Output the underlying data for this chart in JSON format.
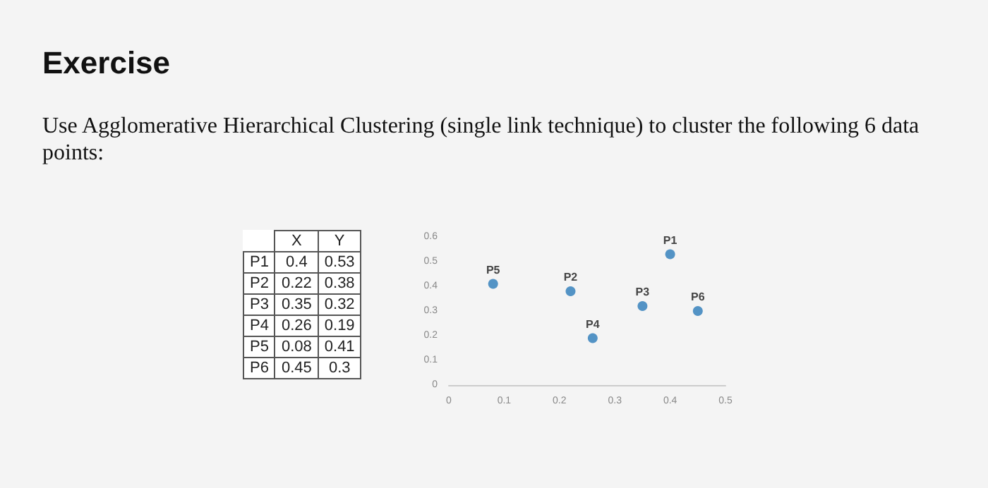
{
  "chart_data": {
    "type": "scatter",
    "title": "Exercise",
    "subtitle": "Use Agglomerative Hierarchical Clustering (single link technique) to cluster the following 6 data points:",
    "x": [
      0.4,
      0.22,
      0.35,
      0.26,
      0.08,
      0.45
    ],
    "values": [
      0.53,
      0.38,
      0.32,
      0.19,
      0.41,
      0.3
    ],
    "color": "#2b7bb9",
    "marker": "circle",
    "grid": false,
    "xlim": [
      0,
      0.5
    ],
    "xticks": [
      0,
      0.1,
      0.2,
      0.3,
      0.4,
      0.5
    ],
    "ylim": [
      0,
      0.6
    ],
    "yticks": [
      0,
      0.1,
      0.2,
      0.3,
      0.4,
      0.5,
      0.6
    ],
    "annotations": [
      {
        "text": "P1",
        "x": 0.4,
        "y": 0.53
      },
      {
        "text": "P2",
        "x": 0.22,
        "y": 0.38
      },
      {
        "text": "P3",
        "x": 0.35,
        "y": 0.32
      },
      {
        "text": "P4",
        "x": 0.26,
        "y": 0.19
      },
      {
        "text": "P5",
        "x": 0.08,
        "y": 0.41
      },
      {
        "text": "P6",
        "x": 0.45,
        "y": 0.3
      },
      "X",
      "Y",
      "0.4",
      "0.53",
      "0.22",
      "0.38",
      "0.35",
      "0.32",
      "0.26",
      "0.19",
      "0.08",
      "0.41",
      "0.45",
      "0.3"
    ]
  }
}
